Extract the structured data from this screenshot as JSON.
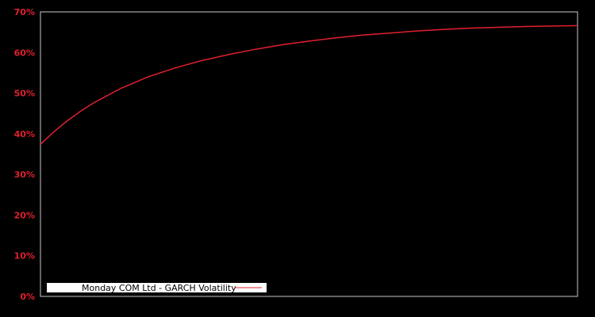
{
  "chart_data": {
    "type": "line",
    "title": "",
    "xlabel": "",
    "ylabel": "",
    "ylim": [
      0,
      70
    ],
    "yticks": [
      "0%",
      "10%",
      "20%",
      "30%",
      "40%",
      "50%",
      "60%",
      "70%"
    ],
    "grid": false,
    "legend_position": "lower-left",
    "background": "#000000",
    "axis_color": "#c8c8c8",
    "tick_color": "#e0202e",
    "series": [
      {
        "name": "Monday COM Ltd - GARCH Volatility",
        "color": "#e0202e",
        "x": [
          0,
          0.025,
          0.05,
          0.075,
          0.1,
          0.15,
          0.2,
          0.25,
          0.3,
          0.35,
          0.4,
          0.45,
          0.5,
          0.55,
          0.6,
          0.65,
          0.7,
          0.75,
          0.8,
          0.85,
          0.9,
          0.95,
          1.0
        ],
        "values": [
          37.4,
          40.5,
          43.2,
          45.6,
          47.7,
          51.2,
          54.0,
          56.2,
          58.0,
          59.5,
          60.8,
          61.9,
          62.8,
          63.6,
          64.3,
          64.8,
          65.3,
          65.7,
          66.0,
          66.2,
          66.4,
          66.5,
          66.6
        ]
      }
    ]
  },
  "legend": {
    "label": "Monday COM Ltd - GARCH Volatility"
  }
}
